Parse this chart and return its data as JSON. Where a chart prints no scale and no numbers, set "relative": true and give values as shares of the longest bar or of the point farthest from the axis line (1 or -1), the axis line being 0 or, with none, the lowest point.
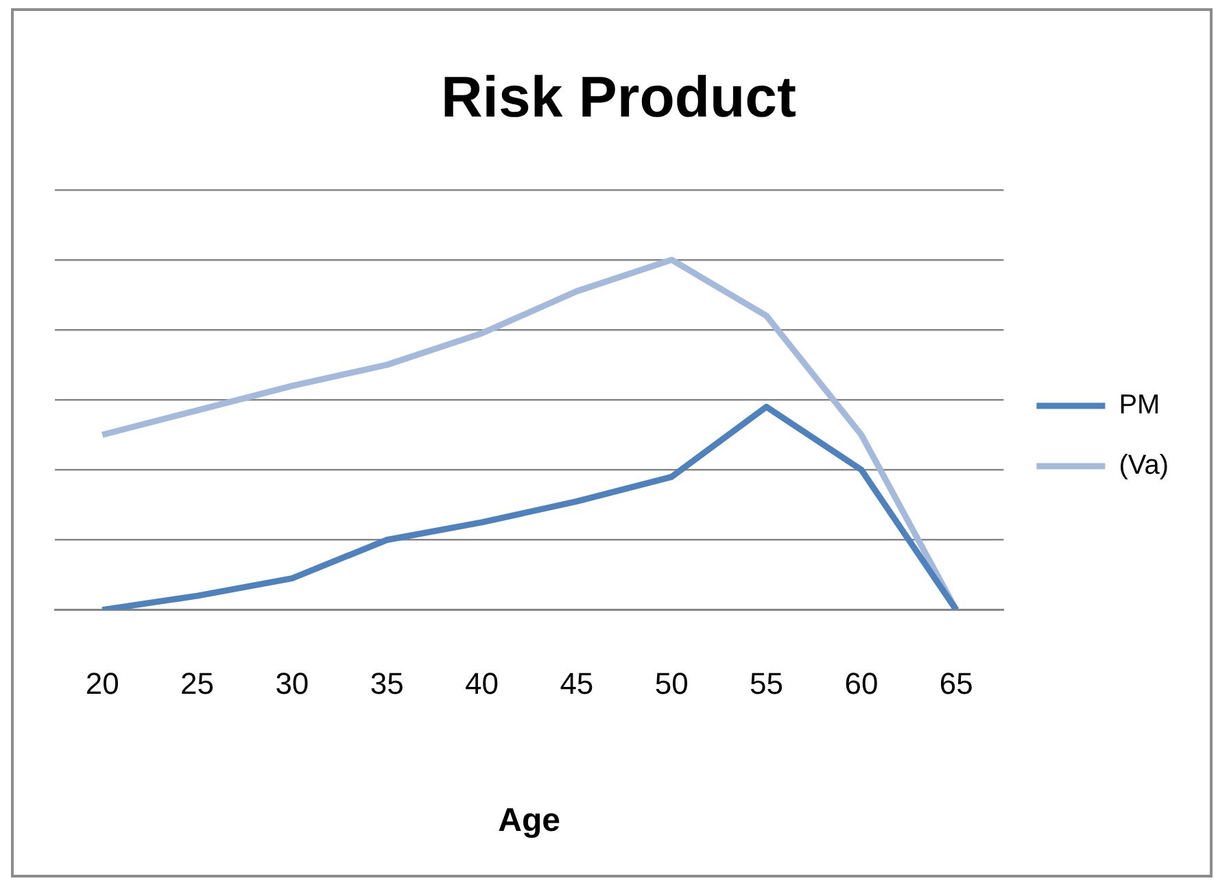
{
  "chart_data": {
    "type": "line",
    "title": "Risk Product",
    "xlabel": "Age",
    "categories": [
      "20",
      "25",
      "30",
      "35",
      "40",
      "45",
      "50",
      "55",
      "60",
      "65"
    ],
    "series": [
      {
        "name": "PM",
        "color": "#4f81bd",
        "values": [
          0,
          0.04,
          0.09,
          0.2,
          0.25,
          0.31,
          0.38,
          0.58,
          0.4,
          0
        ]
      },
      {
        "name": "(Va)",
        "color": "#a5b9db",
        "values": [
          0.5,
          0.57,
          0.64,
          0.7,
          0.79,
          0.91,
          1,
          0.84,
          0.5,
          0
        ]
      }
    ],
    "relative": true,
    "grid": "y",
    "legend": "right",
    "marker": "none",
    "line_style": "solid"
  }
}
